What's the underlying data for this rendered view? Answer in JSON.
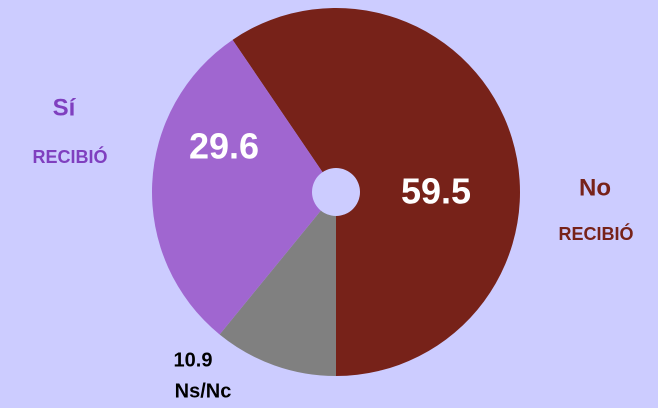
{
  "chart_data": {
    "type": "donut",
    "categories": [
      "No",
      "Ns/Nc",
      "Sí"
    ],
    "sublabels": [
      "RECIBIÓ",
      null,
      "RECIBIÓ"
    ],
    "values": [
      59.5,
      10.9,
      29.6
    ],
    "colors": [
      "#772219",
      "#808080",
      "#a066d0"
    ],
    "label_colors": [
      "#772219",
      "#000000",
      "#7f3fbf"
    ]
  }
}
